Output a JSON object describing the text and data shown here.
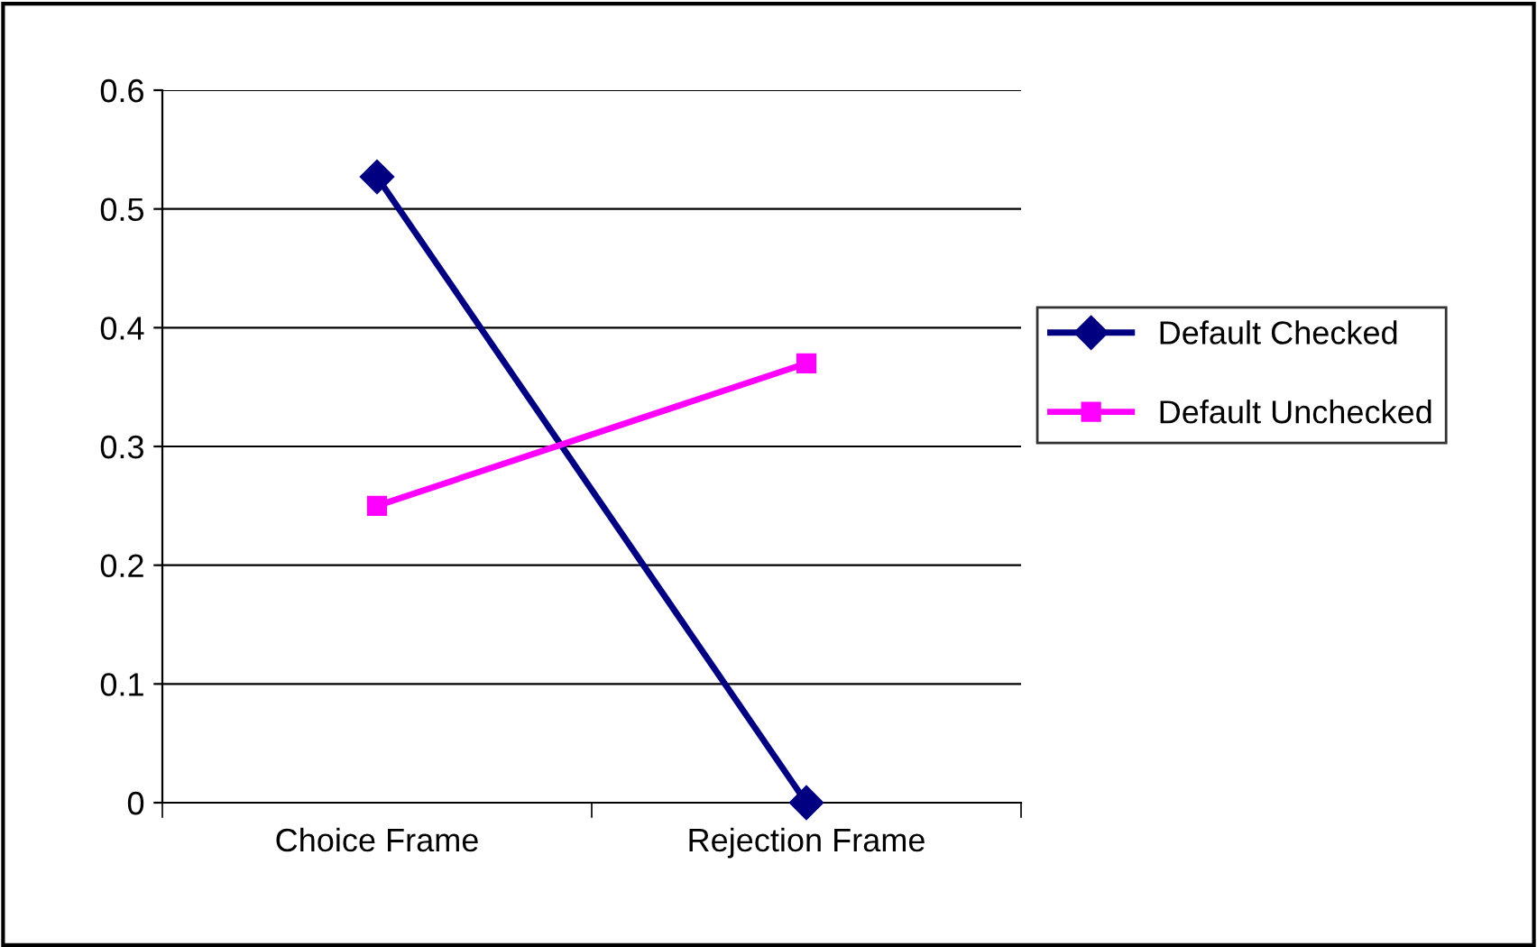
{
  "chart_data": {
    "type": "line",
    "categories": [
      "Choice Frame",
      "Rejection Frame"
    ],
    "series": [
      {
        "name": "Default Checked",
        "color": "#000080",
        "marker": "diamond",
        "values": [
          0.527,
          0.0
        ]
      },
      {
        "name": "Default Unchecked",
        "color": "#ff00ff",
        "marker": "square",
        "values": [
          0.25,
          0.37
        ]
      }
    ],
    "ylim": [
      0,
      0.6
    ],
    "yticks": [
      0,
      0.1,
      0.2,
      0.3,
      0.4,
      0.5,
      0.6
    ],
    "grid": "y",
    "legend": "right"
  }
}
